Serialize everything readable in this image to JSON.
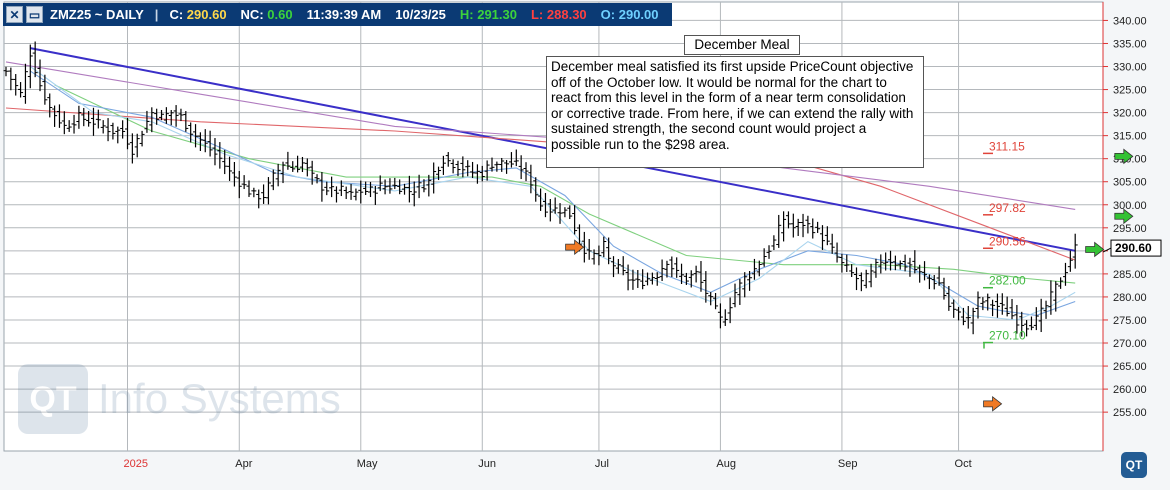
{
  "header": {
    "symbol": "ZMZ25 ~ DAILY",
    "close_label": "C:",
    "close_value": "290.60",
    "nc_label": "NC:",
    "nc_value": "0.60",
    "time": "11:39:39 AM",
    "date": "10/23/25",
    "high_label": "H:",
    "high_value": "291.30",
    "low_label": "L:",
    "low_value": "288.30",
    "open_label": "O:",
    "open_value": "290.00",
    "btn_close_icon": "close-icon",
    "btn_minimize_icon": "minimize-icon"
  },
  "annotation": {
    "title": "December Meal",
    "body": "December meal satisfied its first upside PriceCount objective off of the October low.  It would be normal for the chart to react from this level in the form of a near term consolidation or corrective trade.  From here, if we can extend the rally with sustained strength, the second count would project a possible run to the $298 area."
  },
  "watermark": {
    "logo_text": "QT",
    "text": "Info Systems"
  },
  "corner_logo": "QT",
  "colors": {
    "header_bg": "#0b3a74",
    "close_value": "#ffd84a",
    "nc_value": "#3cd33c",
    "high_value": "#3cd33c",
    "low_value": "#ff4040",
    "open_value": "#6fd0ff",
    "trendline": "#3a2fc8",
    "ma_red": "#e0666a",
    "ma_purple": "#b07bbf",
    "ma_green": "#7fd07f",
    "ma_blue": "#7aa6e0",
    "ma_lightblue": "#a9d4ee",
    "arrow_green": "#34c234",
    "arrow_orange": "#f07a25",
    "target_red": "#e0443a",
    "target_green": "#40b840"
  },
  "chart_data": {
    "type": "ohlc",
    "title": "ZMZ25 ~ DAILY",
    "ylim": [
      251,
      344
    ],
    "y_ticks": [
      255,
      260,
      265,
      270,
      275,
      280,
      285,
      290,
      295,
      300,
      305,
      310,
      315,
      320,
      325,
      330,
      335,
      340
    ],
    "x_months": [
      "2025",
      "Apr",
      "May",
      "Jun",
      "Jul",
      "Aug",
      "Sep",
      "Oct"
    ],
    "x_month_index": [
      25,
      48,
      73,
      98,
      122,
      147,
      172,
      196
    ],
    "last_price": "290.60",
    "grid": true,
    "close_path": [
      [
        0,
        329
      ],
      [
        3,
        324
      ],
      [
        5,
        333
      ],
      [
        7,
        326
      ],
      [
        9,
        321
      ],
      [
        12,
        317
      ],
      [
        15,
        319
      ],
      [
        18,
        318
      ],
      [
        20,
        317
      ],
      [
        22,
        316
      ],
      [
        24,
        316
      ],
      [
        26,
        312
      ],
      [
        28,
        316
      ],
      [
        30,
        320
      ],
      [
        32,
        319
      ],
      [
        34,
        320
      ],
      [
        36,
        319
      ],
      [
        38,
        316
      ],
      [
        40,
        314
      ],
      [
        42,
        312
      ],
      [
        44,
        310
      ],
      [
        46,
        307
      ],
      [
        49,
        304
      ],
      [
        51,
        302
      ],
      [
        53,
        302
      ],
      [
        55,
        306
      ],
      [
        57,
        309
      ],
      [
        59,
        308
      ],
      [
        61,
        309
      ],
      [
        63,
        306
      ],
      [
        65,
        304
      ],
      [
        67,
        303
      ],
      [
        69,
        303
      ],
      [
        71,
        302
      ],
      [
        73,
        303
      ],
      [
        75,
        303
      ],
      [
        77,
        304
      ],
      [
        79,
        304
      ],
      [
        81,
        304
      ],
      [
        83,
        303
      ],
      [
        85,
        304
      ],
      [
        87,
        305
      ],
      [
        88,
        307
      ],
      [
        90,
        310
      ],
      [
        92,
        309
      ],
      [
        94,
        308
      ],
      [
        96,
        307
      ],
      [
        98,
        307
      ],
      [
        100,
        309
      ],
      [
        102,
        309
      ],
      [
        104,
        309
      ],
      [
        106,
        308
      ],
      [
        108,
        305
      ],
      [
        110,
        300
      ],
      [
        112,
        299
      ],
      [
        114,
        299
      ],
      [
        116,
        298
      ],
      [
        118,
        292
      ],
      [
        120,
        289
      ],
      [
        122,
        289
      ],
      [
        123,
        291
      ],
      [
        124,
        288
      ],
      [
        126,
        286
      ],
      [
        128,
        284
      ],
      [
        130,
        283
      ],
      [
        132,
        284
      ],
      [
        134,
        285
      ],
      [
        136,
        288
      ],
      [
        138,
        285
      ],
      [
        140,
        284
      ],
      [
        142,
        285
      ],
      [
        144,
        281
      ],
      [
        146,
        277
      ],
      [
        147,
        275
      ],
      [
        148,
        276
      ],
      [
        150,
        281
      ],
      [
        152,
        284
      ],
      [
        154,
        286
      ],
      [
        156,
        289
      ],
      [
        158,
        292
      ],
      [
        160,
        297
      ],
      [
        162,
        295
      ],
      [
        164,
        296
      ],
      [
        166,
        295
      ],
      [
        168,
        293
      ],
      [
        170,
        290
      ],
      [
        172,
        287
      ],
      [
        174,
        285
      ],
      [
        176,
        283
      ],
      [
        178,
        285
      ],
      [
        180,
        288
      ],
      [
        182,
        288
      ],
      [
        184,
        287
      ],
      [
        186,
        287
      ],
      [
        188,
        285
      ],
      [
        190,
        284
      ],
      [
        192,
        283
      ],
      [
        194,
        278
      ],
      [
        196,
        276
      ],
      [
        198,
        275
      ],
      [
        200,
        279
      ],
      [
        202,
        279
      ],
      [
        204,
        278
      ],
      [
        206,
        277
      ],
      [
        208,
        275
      ],
      [
        210,
        274
      ],
      [
        212,
        275
      ],
      [
        214,
        278
      ],
      [
        216,
        282
      ],
      [
        218,
        286
      ],
      [
        220,
        290.6
      ]
    ],
    "series": [
      {
        "name": "",
        "kind": "trendline",
        "points": [
          [
            5,
            334
          ],
          [
            220,
            290
          ]
        ]
      },
      {
        "name": "",
        "kind": "ma",
        "points": [
          [
            0,
            321
          ],
          [
            40,
            318
          ],
          [
            80,
            316
          ],
          [
            120,
            313
          ],
          [
            160,
            310
          ],
          [
            180,
            304
          ],
          [
            200,
            296
          ],
          [
            220,
            288
          ]
        ]
      },
      {
        "name": "",
        "kind": "ma",
        "points": [
          [
            0,
            331
          ],
          [
            40,
            324
          ],
          [
            80,
            317
          ],
          [
            120,
            314
          ],
          [
            160,
            308
          ],
          [
            190,
            304
          ],
          [
            220,
            299
          ]
        ]
      },
      {
        "name": "",
        "kind": "ma",
        "points": [
          [
            10,
            326
          ],
          [
            30,
            316
          ],
          [
            50,
            310
          ],
          [
            70,
            306
          ],
          [
            90,
            306
          ],
          [
            100,
            306
          ],
          [
            110,
            304
          ],
          [
            120,
            298
          ],
          [
            140,
            289
          ],
          [
            160,
            287
          ],
          [
            180,
            287
          ],
          [
            195,
            286
          ],
          [
            210,
            284
          ],
          [
            220,
            283
          ]
        ]
      },
      {
        "name": "",
        "kind": "ma",
        "points": [
          [
            5,
            329
          ],
          [
            15,
            322
          ],
          [
            30,
            319
          ],
          [
            45,
            312
          ],
          [
            55,
            307
          ],
          [
            65,
            305
          ],
          [
            80,
            304
          ],
          [
            95,
            307
          ],
          [
            105,
            308
          ],
          [
            115,
            302
          ],
          [
            125,
            291
          ],
          [
            135,
            285
          ],
          [
            145,
            281
          ],
          [
            155,
            286
          ],
          [
            165,
            290
          ],
          [
            175,
            289
          ],
          [
            185,
            287
          ],
          [
            192,
            283
          ],
          [
            200,
            278
          ],
          [
            205,
            277
          ],
          [
            212,
            276
          ],
          [
            220,
            279
          ]
        ]
      },
      {
        "name": "",
        "kind": "ma",
        "points": [
          [
            5,
            330
          ],
          [
            18,
            320
          ],
          [
            30,
            318
          ],
          [
            45,
            311
          ],
          [
            60,
            306
          ],
          [
            80,
            303
          ],
          [
            95,
            306
          ],
          [
            108,
            304
          ],
          [
            120,
            290
          ],
          [
            130,
            285
          ],
          [
            145,
            279
          ],
          [
            155,
            284
          ],
          [
            165,
            292
          ],
          [
            175,
            287
          ],
          [
            190,
            285
          ],
          [
            198,
            276
          ],
          [
            208,
            275
          ],
          [
            215,
            278
          ],
          [
            220,
            281
          ]
        ]
      }
    ],
    "targets": [
      {
        "label": "311.15",
        "value": 311.15,
        "color": "red"
      },
      {
        "label": "297.82",
        "value": 297.82,
        "color": "red"
      },
      {
        "label": "290.56",
        "value": 290.56,
        "color": "red"
      },
      {
        "label": "282.00",
        "value": 282.0,
        "color": "green"
      },
      {
        "label": "270.10",
        "value": 270.1,
        "color": "green"
      }
    ],
    "arrows": [
      {
        "color": "orange",
        "bar": 117,
        "value": 290.8
      },
      {
        "color": "orange",
        "bar": 203,
        "value": 256.8
      },
      {
        "color": "green",
        "bar": 230,
        "value": 310.5
      },
      {
        "color": "green",
        "bar": 230,
        "value": 297.5
      },
      {
        "color": "green",
        "bar": 224,
        "value": 290.3
      }
    ]
  }
}
